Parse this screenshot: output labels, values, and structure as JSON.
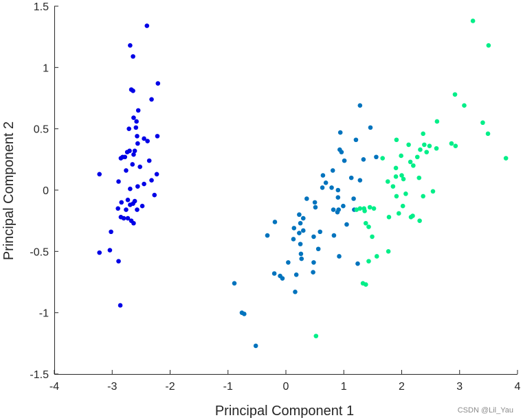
{
  "chart_data": {
    "type": "scatter",
    "title": "",
    "xlabel": "Principal Component 1",
    "ylabel": "Principal Component 2",
    "xlim": [
      -4,
      4
    ],
    "ylim": [
      -1.5,
      1.5
    ],
    "xticks": [
      "-4",
      "-3",
      "-2",
      "-1",
      "0",
      "1",
      "2",
      "3",
      "4"
    ],
    "yticks": [
      "-1.5",
      "-1",
      "-0.5",
      "0",
      "0.5",
      "1",
      "1.5"
    ],
    "grid": false,
    "series": [
      {
        "color": "#0000e6",
        "points": [
          [
            -2.4,
            1.34
          ],
          [
            -2.69,
            1.18
          ],
          [
            -2.64,
            1.09
          ],
          [
            -2.21,
            0.87
          ],
          [
            -2.67,
            0.82
          ],
          [
            -2.64,
            0.81
          ],
          [
            -2.32,
            0.74
          ],
          [
            -2.55,
            0.65
          ],
          [
            -2.63,
            0.59
          ],
          [
            -2.58,
            0.56
          ],
          [
            -2.71,
            0.5
          ],
          [
            -2.59,
            0.51
          ],
          [
            -2.57,
            0.44
          ],
          [
            -2.22,
            0.44
          ],
          [
            -2.45,
            0.42
          ],
          [
            -2.56,
            0.38
          ],
          [
            -2.39,
            0.4
          ],
          [
            -2.61,
            0.32
          ],
          [
            -2.7,
            0.32
          ],
          [
            -2.74,
            0.31
          ],
          [
            -2.63,
            0.29
          ],
          [
            -2.82,
            0.27
          ],
          [
            -2.78,
            0.27
          ],
          [
            -2.85,
            0.26
          ],
          [
            -2.36,
            0.24
          ],
          [
            -2.65,
            0.21
          ],
          [
            -2.52,
            0.19
          ],
          [
            -2.76,
            0.16
          ],
          [
            -2.23,
            0.13
          ],
          [
            -3.22,
            0.13
          ],
          [
            -2.32,
            0.08
          ],
          [
            -2.89,
            0.07
          ],
          [
            -2.45,
            0.05
          ],
          [
            -2.56,
            0.03
          ],
          [
            -2.69,
            0.01
          ],
          [
            -2.27,
            -0.04
          ],
          [
            -2.73,
            -0.08
          ],
          [
            -2.61,
            -0.09
          ],
          [
            -2.84,
            -0.1
          ],
          [
            -2.64,
            -0.11
          ],
          [
            -2.69,
            -0.12
          ],
          [
            -2.48,
            -0.13
          ],
          [
            -2.9,
            -0.15
          ],
          [
            -2.76,
            -0.16
          ],
          [
            -2.57,
            -0.16
          ],
          [
            -2.85,
            -0.22
          ],
          [
            -2.73,
            -0.23
          ],
          [
            -2.8,
            -0.23
          ],
          [
            -2.67,
            -0.25
          ],
          [
            -2.63,
            -0.27
          ],
          [
            -3.02,
            -0.34
          ],
          [
            -3.22,
            -0.51
          ],
          [
            -3.04,
            -0.49
          ],
          [
            -2.89,
            -0.58
          ],
          [
            -2.86,
            -0.94
          ]
        ]
      },
      {
        "color": "#0073bd",
        "points": [
          [
            1.28,
            0.69
          ],
          [
            1.46,
            0.51
          ],
          [
            0.94,
            0.47
          ],
          [
            1.21,
            0.41
          ],
          [
            1.56,
            0.27
          ],
          [
            0.93,
            0.33
          ],
          [
            0.96,
            0.31
          ],
          [
            1.01,
            0.24
          ],
          [
            1.34,
            0.25
          ],
          [
            0.81,
            0.16
          ],
          [
            0.64,
            0.12
          ],
          [
            0.69,
            0.06
          ],
          [
            1.13,
            0.1
          ],
          [
            0.63,
            0.02
          ],
          [
            1.28,
            0.08
          ],
          [
            0.9,
            0.0
          ],
          [
            0.79,
            0.02
          ],
          [
            1.17,
            -0.07
          ],
          [
            0.9,
            -0.06
          ],
          [
            0.5,
            -0.1
          ],
          [
            0.36,
            -0.07
          ],
          [
            0.23,
            -0.2
          ],
          [
            0.51,
            -0.14
          ],
          [
            0.82,
            -0.16
          ],
          [
            0.99,
            -0.13
          ],
          [
            1.18,
            -0.16
          ],
          [
            0.91,
            -0.16
          ],
          [
            0.89,
            -0.18
          ],
          [
            0.3,
            -0.23
          ],
          [
            -0.19,
            -0.26
          ],
          [
            0.14,
            -0.31
          ],
          [
            0.25,
            -0.27
          ],
          [
            0.3,
            -0.33
          ],
          [
            0.23,
            -0.35
          ],
          [
            0.59,
            -0.34
          ],
          [
            0.48,
            -0.38
          ],
          [
            0.83,
            -0.37
          ],
          [
            -0.32,
            -0.37
          ],
          [
            0.13,
            -0.4
          ],
          [
            0.25,
            -0.44
          ],
          [
            0.56,
            -0.48
          ],
          [
            0.26,
            -0.52
          ],
          [
            0.92,
            -0.54
          ],
          [
            0.27,
            -0.56
          ],
          [
            0.04,
            -0.59
          ],
          [
            0.48,
            -0.59
          ],
          [
            0.18,
            -0.69
          ],
          [
            -0.2,
            -0.68
          ],
          [
            0.47,
            -0.67
          ],
          [
            -0.06,
            -0.72
          ],
          [
            -0.1,
            -0.7
          ],
          [
            0.16,
            -0.83
          ],
          [
            -0.89,
            -0.76
          ],
          [
            -0.76,
            -1.0
          ],
          [
            -0.72,
            -1.01
          ],
          [
            -0.52,
            -1.27
          ],
          [
            1.24,
            -0.6
          ],
          [
            1.05,
            -0.28
          ]
        ]
      },
      {
        "color": "#00ee88",
        "points": [
          [
            3.23,
            1.38
          ],
          [
            3.5,
            1.18
          ],
          [
            2.92,
            0.78
          ],
          [
            3.08,
            0.69
          ],
          [
            2.61,
            0.56
          ],
          [
            3.4,
            0.55
          ],
          [
            3.49,
            0.46
          ],
          [
            2.37,
            0.46
          ],
          [
            1.91,
            0.41
          ],
          [
            2.86,
            0.38
          ],
          [
            2.12,
            0.37
          ],
          [
            2.39,
            0.37
          ],
          [
            2.93,
            0.36
          ],
          [
            2.48,
            0.36
          ],
          [
            2.6,
            0.34
          ],
          [
            2.32,
            0.33
          ],
          [
            1.99,
            0.28
          ],
          [
            2.43,
            0.31
          ],
          [
            1.67,
            0.26
          ],
          [
            2.27,
            0.27
          ],
          [
            3.8,
            0.26
          ],
          [
            1.9,
            0.18
          ],
          [
            2.15,
            0.23
          ],
          [
            2.2,
            0.2
          ],
          [
            2.0,
            0.12
          ],
          [
            2.03,
            0.09
          ],
          [
            1.9,
            0.11
          ],
          [
            1.76,
            0.07
          ],
          [
            2.3,
            0.1
          ],
          [
            1.85,
            0.03
          ],
          [
            2.54,
            -0.01
          ],
          [
            2.07,
            -0.03
          ],
          [
            1.91,
            -0.05
          ],
          [
            2.37,
            -0.05
          ],
          [
            2.02,
            -0.13
          ],
          [
            1.45,
            -0.14
          ],
          [
            1.35,
            -0.15
          ],
          [
            1.28,
            -0.15
          ],
          [
            1.22,
            -0.16
          ],
          [
            1.52,
            -0.15
          ],
          [
            1.36,
            -0.17
          ],
          [
            1.95,
            -0.19
          ],
          [
            2.19,
            -0.21
          ],
          [
            1.78,
            -0.22
          ],
          [
            2.16,
            -0.22
          ],
          [
            2.31,
            -0.25
          ],
          [
            1.38,
            -0.27
          ],
          [
            1.43,
            -0.3
          ],
          [
            1.49,
            -0.38
          ],
          [
            1.77,
            -0.5
          ],
          [
            1.57,
            -0.54
          ],
          [
            1.43,
            -0.58
          ],
          [
            1.33,
            -0.76
          ],
          [
            1.38,
            -0.77
          ],
          [
            0.52,
            -1.19
          ]
        ]
      }
    ]
  },
  "watermark": "CSDN @Lil_Yau"
}
